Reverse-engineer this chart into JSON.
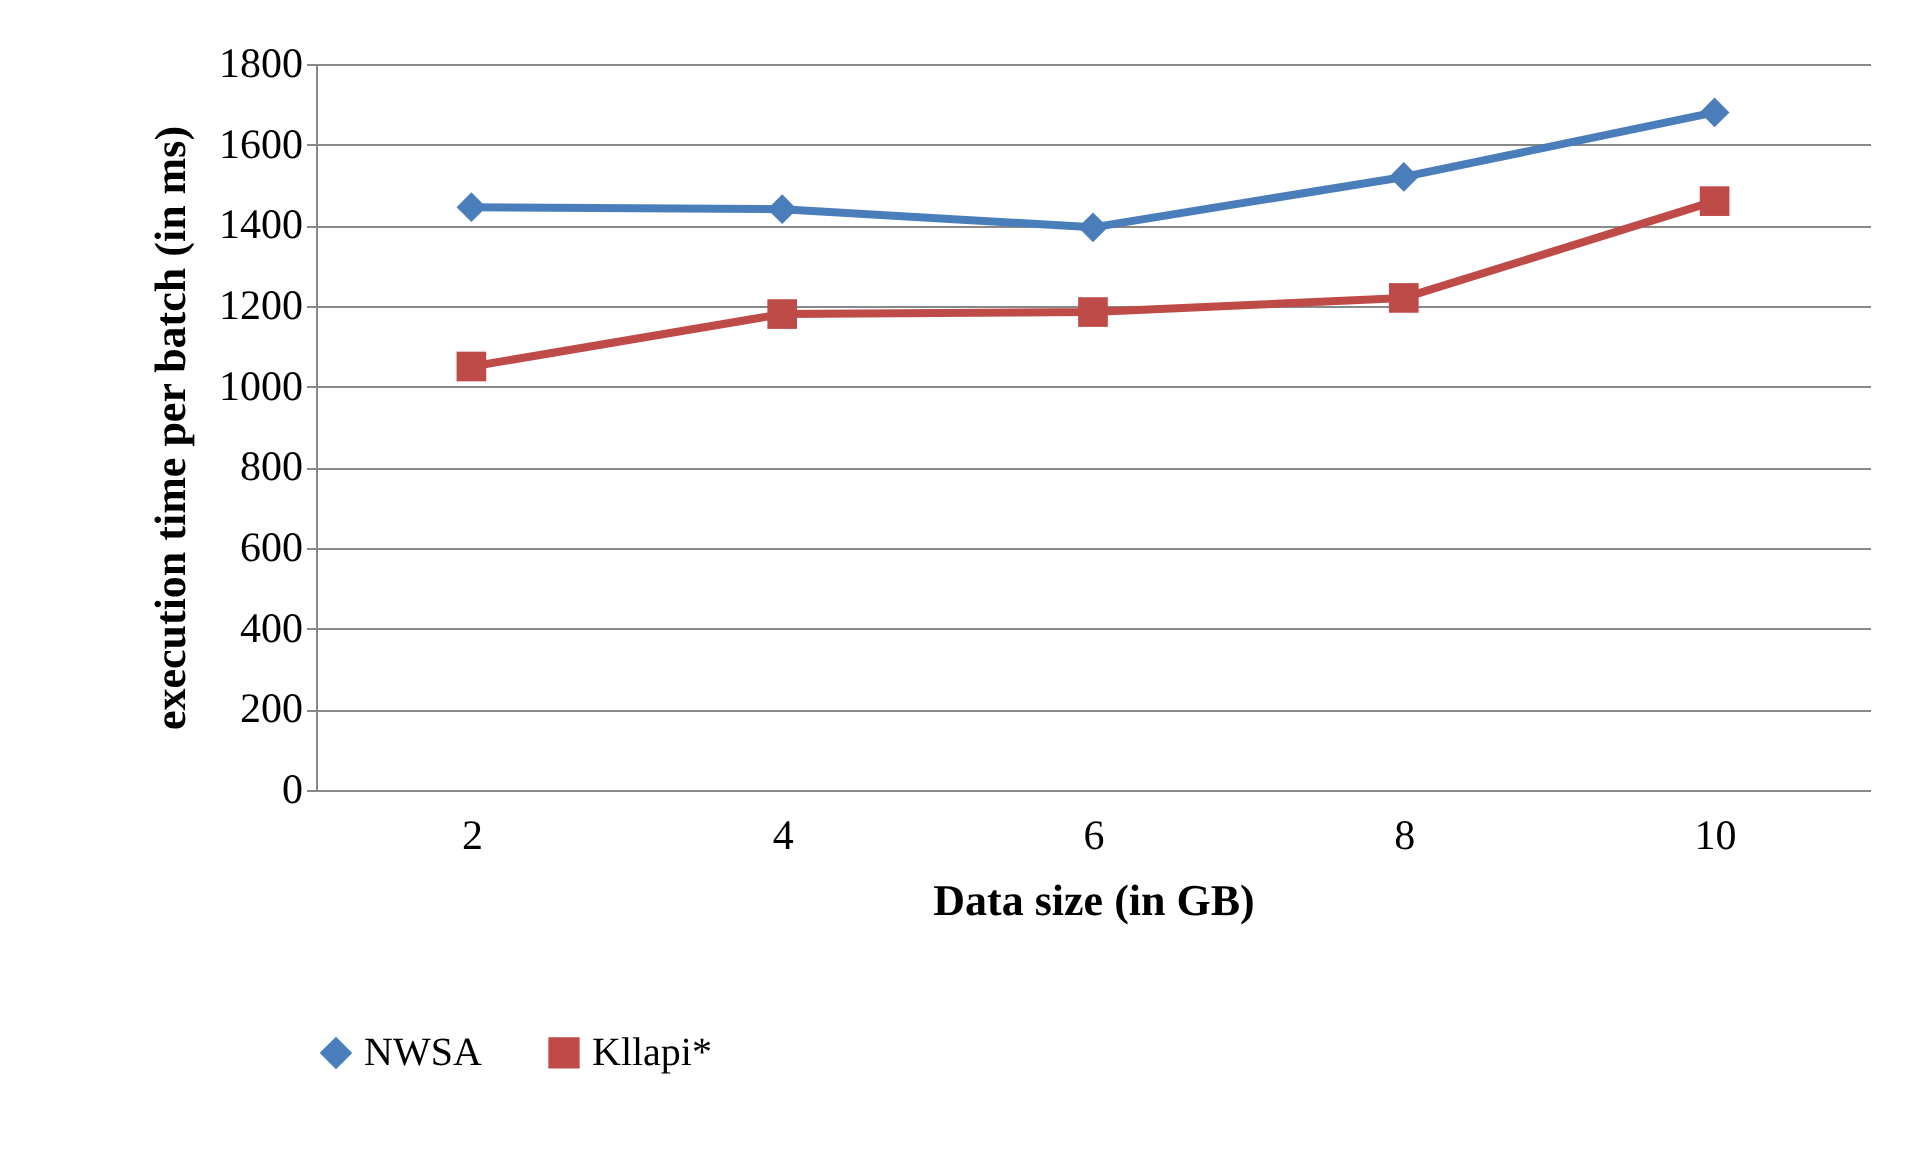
{
  "chart_data": {
    "type": "line",
    "xlabel": "Data size (in GB)",
    "ylabel": "execution time per batch (in ms)",
    "categories": [
      "2",
      "4",
      "6",
      "8",
      "10"
    ],
    "series": [
      {
        "name": "NWSA",
        "color": "#4a7ebb",
        "marker": "diamond",
        "values": [
          1445,
          1440,
          1395,
          1520,
          1680
        ]
      },
      {
        "name": "Kllapi*",
        "color": "#be4b48",
        "marker": "square",
        "values": [
          1050,
          1180,
          1185,
          1220,
          1460
        ]
      }
    ],
    "ylim": [
      0,
      1800
    ],
    "yticks": [
      0,
      200,
      400,
      600,
      800,
      1000,
      1200,
      1400,
      1600,
      1800
    ],
    "grid": "y",
    "legend": "bottom",
    "line_style": "solid"
  }
}
